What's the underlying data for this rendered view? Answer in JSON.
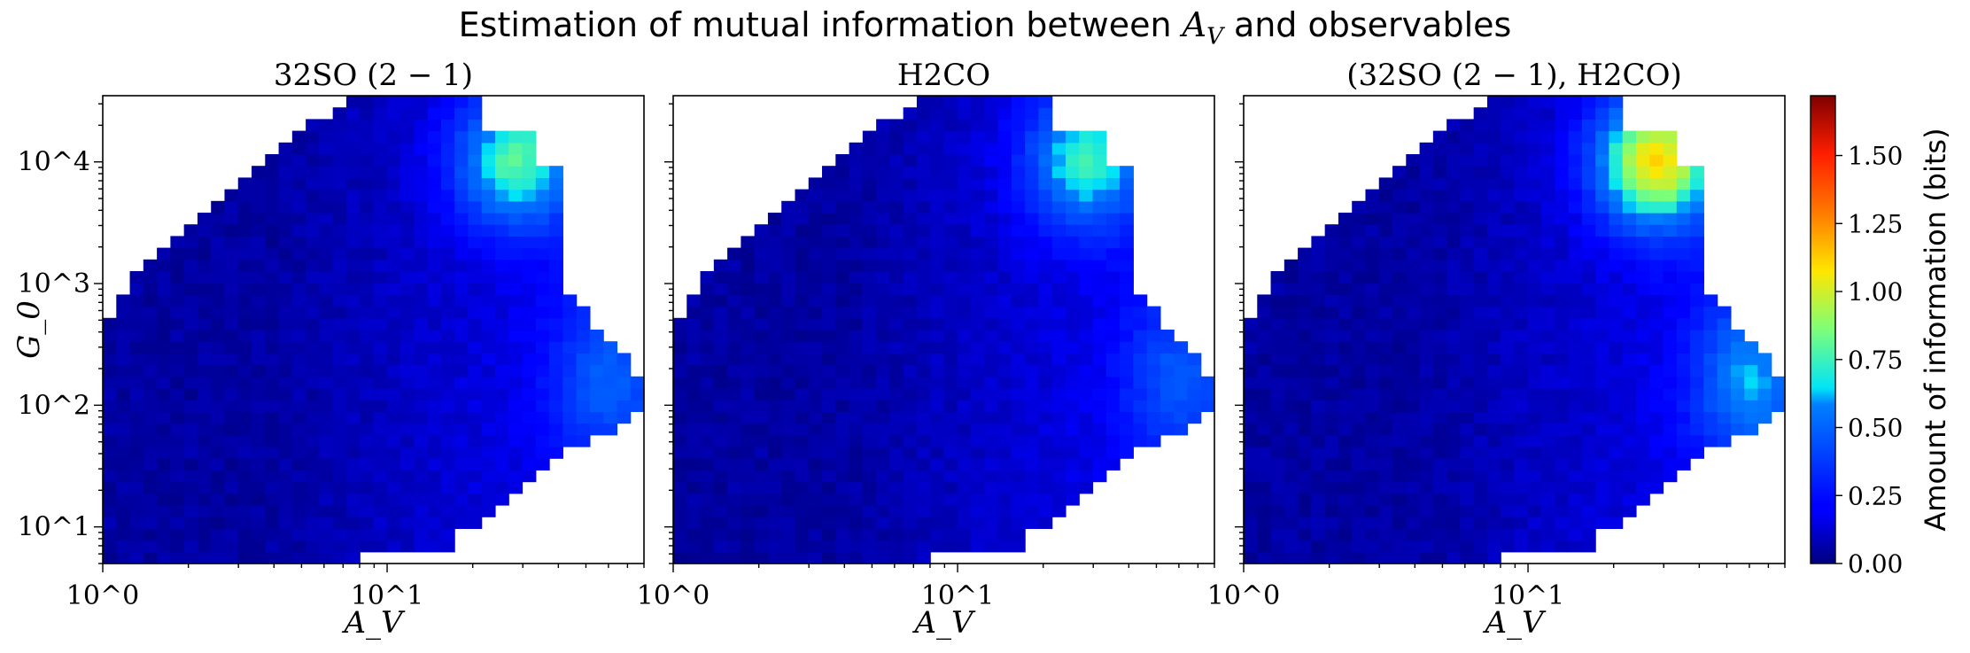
{
  "figure": {
    "suptitle": "Estimation of mutual information between A_V and observables"
  },
  "chart_data": [
    {
      "type": "heatmap",
      "title": "32SO (2 − 1)",
      "xlabel": "A_V",
      "ylabel": "G_0",
      "xscale": "log",
      "yscale": "log",
      "xlim": [
        1,
        80
      ],
      "ylim": [
        5,
        35000
      ],
      "x_ticks": [
        "10^0",
        "10^1"
      ],
      "y_ticks": [
        "10^1",
        "10^2",
        "10^3",
        "10^4"
      ],
      "hot_region_value": 0.65
    },
    {
      "type": "heatmap",
      "title": "H2CO",
      "xlabel": "A_V",
      "ylabel": "",
      "xscale": "log",
      "yscale": "log",
      "xlim": [
        1,
        80
      ],
      "ylim": [
        5,
        35000
      ],
      "x_ticks": [
        "10^0",
        "10^1"
      ],
      "y_ticks": [],
      "hot_region_value": 0.6
    },
    {
      "type": "heatmap",
      "title": "(32SO (2 − 1), H2CO)",
      "xlabel": "A_V",
      "ylabel": "",
      "xscale": "log",
      "yscale": "log",
      "xlim": [
        1,
        80
      ],
      "ylim": [
        5,
        35000
      ],
      "x_ticks": [
        "10^0",
        "10^1"
      ],
      "y_ticks": [],
      "hot_region_value": 0.95
    }
  ],
  "colorbar": {
    "label": "Amount of information (bits)",
    "range": [
      0,
      1.72
    ],
    "ticks": [
      "0.00",
      "0.25",
      "0.50",
      "0.75",
      "1.00",
      "1.25",
      "1.50"
    ],
    "colormap": "jet"
  }
}
